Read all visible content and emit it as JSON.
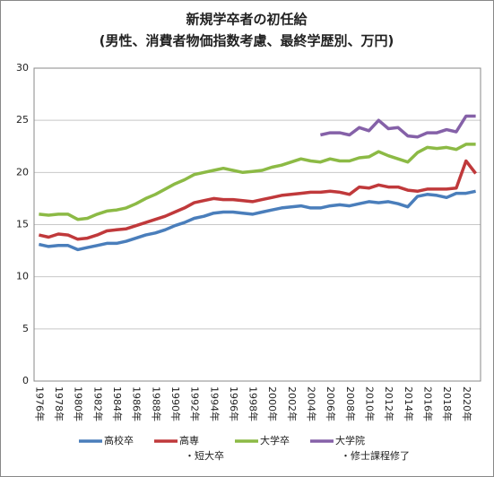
{
  "chart_data": {
    "type": "line",
    "title": "新規学卒者の初任給",
    "subtitle": "(男性、消費者物価指数考慮、最終学歴別、万円)",
    "categories": [
      "1976年",
      null,
      "1978年",
      null,
      "1980年",
      null,
      "1982年",
      null,
      "1984年",
      null,
      "1986年",
      null,
      "1988年",
      null,
      "1990年",
      null,
      "1992年",
      null,
      "1994年",
      null,
      "1996年",
      null,
      "1998年",
      null,
      "2000年",
      null,
      "2002年",
      null,
      "2004年",
      null,
      "2006年",
      null,
      "2008年",
      null,
      "2010年",
      null,
      "2012年",
      null,
      "2014年",
      null,
      "2016年",
      null,
      "2018年",
      null,
      "2020年",
      null
    ],
    "series": [
      {
        "name": "高校卒",
        "color": "#4a7ebb",
        "values": [
          13.1,
          12.9,
          13.0,
          13.0,
          12.6,
          12.8,
          13.0,
          13.2,
          13.2,
          13.4,
          13.7,
          14.0,
          14.2,
          14.5,
          14.9,
          15.2,
          15.6,
          15.8,
          16.1,
          16.2,
          16.2,
          16.1,
          16.0,
          16.2,
          16.4,
          16.6,
          16.7,
          16.8,
          16.6,
          16.6,
          16.8,
          16.9,
          16.8,
          17.0,
          17.2,
          17.1,
          17.2,
          17.0,
          16.7,
          17.7,
          17.9,
          17.8,
          17.6,
          18.0,
          18.0,
          18.2
        ]
      },
      {
        "name": "高専・短大卒",
        "color": "#c0393b",
        "values": [
          14.0,
          13.8,
          14.1,
          14.0,
          13.6,
          13.7,
          14.0,
          14.4,
          14.5,
          14.6,
          14.9,
          15.2,
          15.5,
          15.8,
          16.2,
          16.6,
          17.1,
          17.3,
          17.5,
          17.4,
          17.4,
          17.3,
          17.2,
          17.4,
          17.6,
          17.8,
          17.9,
          18.0,
          18.1,
          18.1,
          18.2,
          18.1,
          17.9,
          18.6,
          18.5,
          18.8,
          18.6,
          18.6,
          18.3,
          18.2,
          18.4,
          18.4,
          18.4,
          18.5,
          21.1,
          19.9
        ]
      },
      {
        "name": "大学卒",
        "color": "#8cba45",
        "values": [
          16.0,
          15.9,
          16.0,
          16.0,
          15.5,
          15.6,
          16.0,
          16.3,
          16.4,
          16.6,
          17.0,
          17.5,
          17.9,
          18.4,
          18.9,
          19.3,
          19.8,
          20.0,
          20.2,
          20.4,
          20.2,
          20.0,
          20.1,
          20.2,
          20.5,
          20.7,
          21.0,
          21.3,
          21.1,
          21.0,
          21.3,
          21.1,
          21.1,
          21.4,
          21.5,
          22.0,
          21.6,
          21.3,
          21.0,
          21.9,
          22.4,
          22.3,
          22.4,
          22.2,
          22.7,
          22.7
        ]
      },
      {
        "name": "大学院・修士課程修了",
        "color": "#8561a8",
        "values": [
          null,
          null,
          null,
          null,
          null,
          null,
          null,
          null,
          null,
          null,
          null,
          null,
          null,
          null,
          null,
          null,
          null,
          null,
          null,
          null,
          null,
          null,
          null,
          null,
          null,
          null,
          null,
          null,
          null,
          23.6,
          23.8,
          23.8,
          23.6,
          24.3,
          24.0,
          25.0,
          24.2,
          24.3,
          23.5,
          23.4,
          23.8,
          23.8,
          24.1,
          23.9,
          25.4,
          25.4
        ]
      }
    ],
    "ylim": [
      0,
      30
    ],
    "yticks": [
      0,
      5,
      10,
      15,
      20,
      25,
      30
    ],
    "grid": true
  }
}
